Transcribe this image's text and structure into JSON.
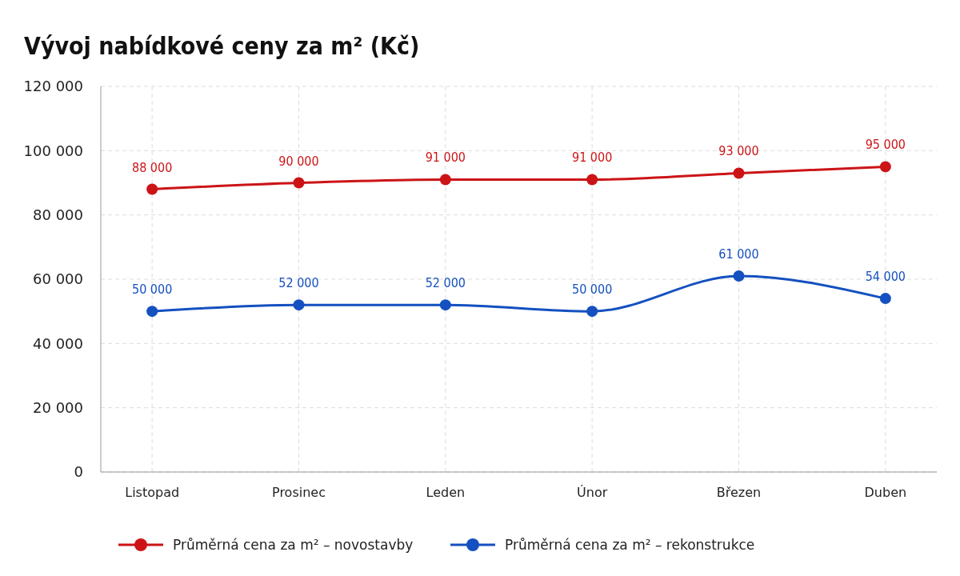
{
  "chart_data": {
    "type": "line",
    "title": "Vývoj nabídkové ceny za m² (Kč)",
    "categories": [
      "Listopad",
      "Prosinec",
      "Leden",
      "Únor",
      "Březen",
      "Duben"
    ],
    "series": [
      {
        "name": "Průměrná cena za m² – novostavby",
        "color": "#cc1417",
        "values": [
          88000,
          90000,
          91000,
          91000,
          93000,
          95000
        ]
      },
      {
        "name": "Průměrná cena za m² – rekonstrukce",
        "color": "#1450c0",
        "values": [
          50000,
          52000,
          52000,
          50000,
          61000,
          54000
        ]
      }
    ],
    "ylim": [
      0,
      120000
    ],
    "yticks": [
      {
        "value": 0,
        "label": "0"
      },
      {
        "value": 20000,
        "label": "20 000"
      },
      {
        "value": 40000,
        "label": "40 000"
      },
      {
        "value": 60000,
        "label": "60 000"
      },
      {
        "value": 80000,
        "label": "80 000"
      },
      {
        "value": 100000,
        "label": "100 000"
      },
      {
        "value": 120000,
        "label": "120 000"
      }
    ],
    "grid": true,
    "legend": "bottom",
    "marker": "circle",
    "line_style": "solid",
    "data_labels": true
  }
}
